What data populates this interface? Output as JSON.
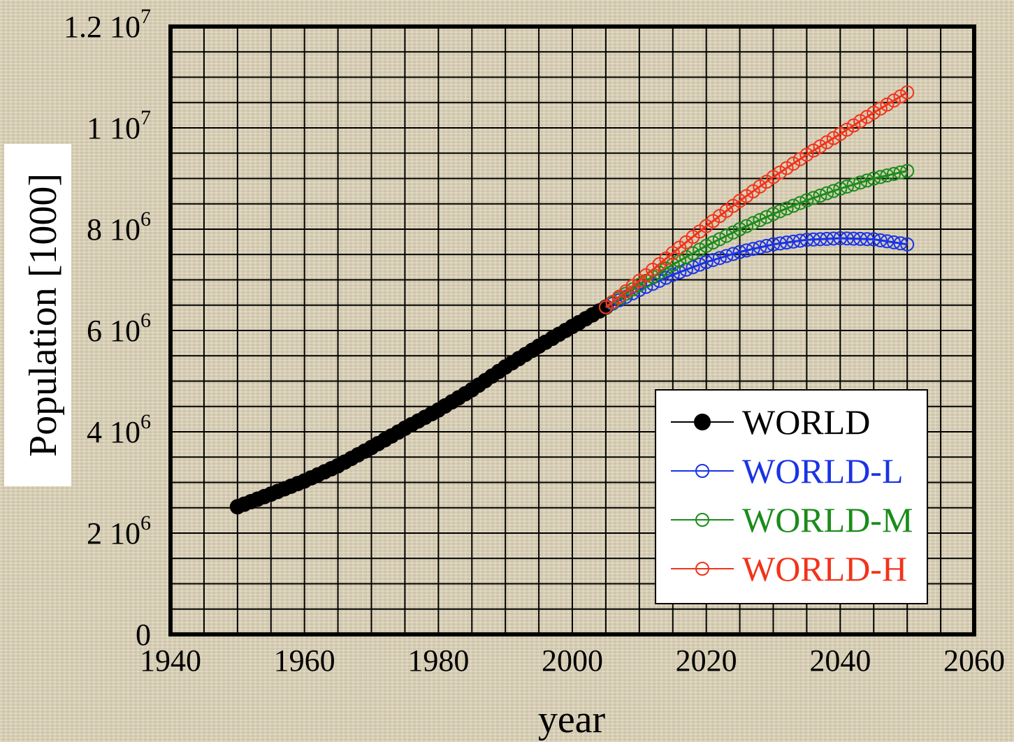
{
  "chart_data": {
    "type": "scatter",
    "xlabel": "year",
    "ylabel": "Population [1000]",
    "xlim": [
      1940,
      2060
    ],
    "ylim": [
      0,
      12000000
    ],
    "x_ticks": [
      {
        "value": 1940,
        "label": "1940"
      },
      {
        "value": 1960,
        "label": "1960"
      },
      {
        "value": 1980,
        "label": "1980"
      },
      {
        "value": 2000,
        "label": "2000"
      },
      {
        "value": 2020,
        "label": "2020"
      },
      {
        "value": 2040,
        "label": "2040"
      },
      {
        "value": 2060,
        "label": "2060"
      }
    ],
    "y_ticks": [
      {
        "value": 0,
        "mantissa": "0",
        "exponent": ""
      },
      {
        "value": 2000000,
        "mantissa": "2 10",
        "exponent": "6"
      },
      {
        "value": 4000000,
        "mantissa": "4 10",
        "exponent": "6"
      },
      {
        "value": 6000000,
        "mantissa": "6 10",
        "exponent": "6"
      },
      {
        "value": 8000000,
        "mantissa": "8 10",
        "exponent": "6"
      },
      {
        "value": 10000000,
        "mantissa": "1 10",
        "exponent": "7"
      },
      {
        "value": 12000000,
        "mantissa": "1.2 10",
        "exponent": "7"
      }
    ],
    "grid": true,
    "legend_position": "bottom-right",
    "series": [
      {
        "name": "WORLD",
        "color": "#000000",
        "marker": "filled-circle",
        "x": [
          1950,
          1955,
          1960,
          1965,
          1970,
          1975,
          1980,
          1985,
          1990,
          1995,
          2000,
          2005
        ],
        "y": [
          2520000,
          2770000,
          3030000,
          3330000,
          3690000,
          4070000,
          4430000,
          4830000,
          5280000,
          5690000,
          6080000,
          6460000
        ]
      },
      {
        "name": "WORLD-L",
        "color": "#1a33e6",
        "marker": "open-circle",
        "x": [
          2005,
          2010,
          2015,
          2020,
          2025,
          2030,
          2035,
          2040,
          2045,
          2050
        ],
        "y": [
          6460000,
          6800000,
          7100000,
          7350000,
          7550000,
          7700000,
          7790000,
          7820000,
          7800000,
          7700000
        ]
      },
      {
        "name": "WORLD-M",
        "color": "#1a8c1a",
        "marker": "open-circle",
        "x": [
          2005,
          2010,
          2015,
          2020,
          2025,
          2030,
          2035,
          2040,
          2045,
          2050
        ],
        "y": [
          6460000,
          6900000,
          7300000,
          7670000,
          8000000,
          8300000,
          8570000,
          8800000,
          9000000,
          9150000
        ]
      },
      {
        "name": "WORLD-H",
        "color": "#f2331a",
        "marker": "open-circle",
        "x": [
          2005,
          2010,
          2015,
          2020,
          2025,
          2030,
          2035,
          2040,
          2045,
          2050
        ],
        "y": [
          6460000,
          6980000,
          7530000,
          8060000,
          8560000,
          9030000,
          9470000,
          9880000,
          10300000,
          10700000
        ]
      }
    ]
  }
}
